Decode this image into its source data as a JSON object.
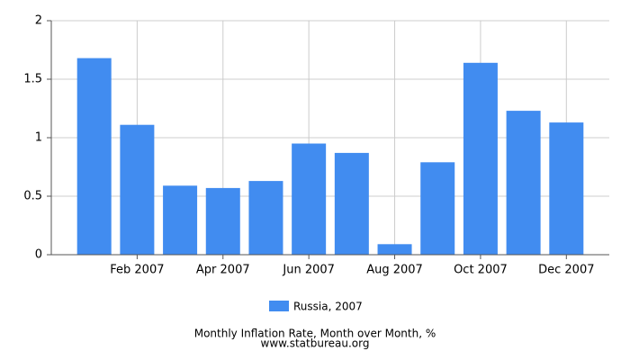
{
  "chart_data": {
    "type": "bar",
    "title": "Monthly Inflation Rate, Month over Month, %",
    "source": "www.statbureau.org",
    "categories": [
      null,
      "Feb 2007",
      null,
      "Apr 2007",
      null,
      "Jun 2007",
      null,
      "Aug 2007",
      null,
      "Oct 2007",
      null,
      "Dec 2007"
    ],
    "series": [
      {
        "name": "Russia, 2007",
        "color": "#418cf0",
        "values": [
          1.68,
          1.11,
          0.59,
          0.57,
          0.63,
          0.95,
          0.87,
          0.09,
          0.79,
          1.64,
          1.23,
          1.13
        ]
      }
    ],
    "ylim": [
      0,
      2
    ],
    "yticks": [
      0,
      0.5,
      1,
      1.5,
      2
    ],
    "grid": true
  }
}
